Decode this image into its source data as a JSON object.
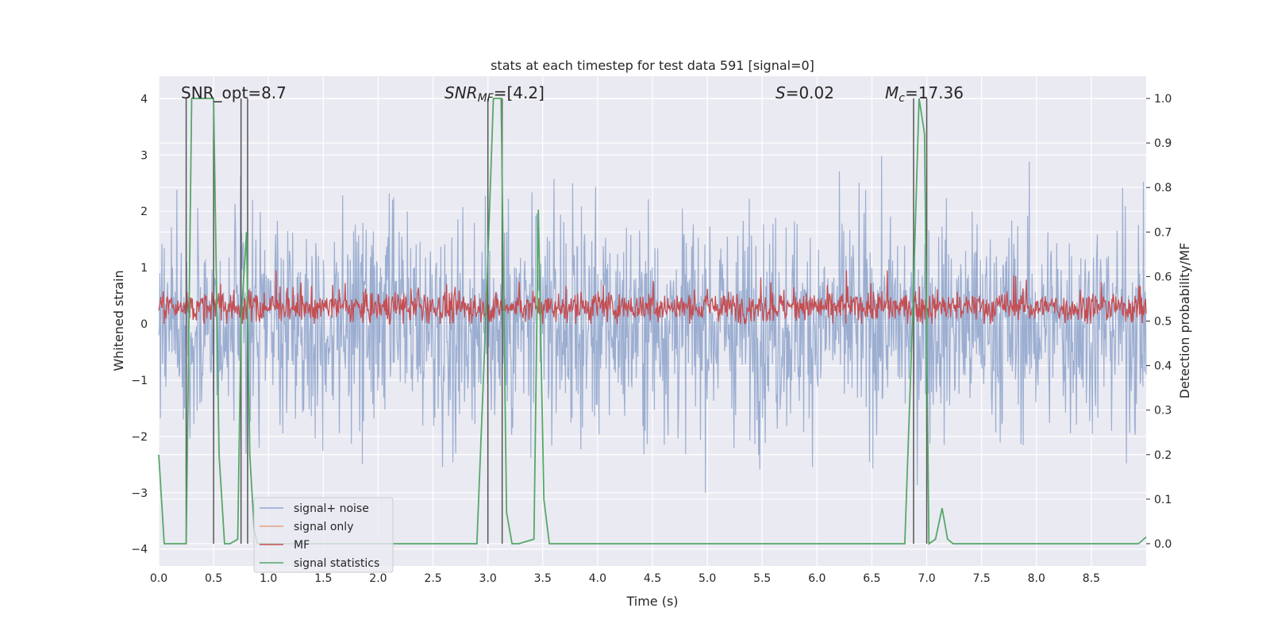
{
  "chart_data": {
    "type": "line",
    "title": "stats at each timestep for test data 591 [signal=0]",
    "xlabel": "Time (s)",
    "ylabel": "Whitened strain",
    "y2label": "Detection probability/MF",
    "xlim": [
      0.0,
      9.0
    ],
    "ylim": [
      -4.3,
      4.4
    ],
    "y2lim": [
      -0.05,
      1.05
    ],
    "xticks": [
      "0.0",
      "0.5",
      "1.0",
      "1.5",
      "2.0",
      "2.5",
      "3.0",
      "3.5",
      "4.0",
      "4.5",
      "5.0",
      "5.5",
      "6.0",
      "6.5",
      "7.0",
      "7.5",
      "8.0",
      "8.5"
    ],
    "yticks": [
      "4",
      "3",
      "2",
      "1",
      "0",
      "−1",
      "−2",
      "−3",
      "−4"
    ],
    "y2ticks": [
      "1.0",
      "0.9",
      "0.8",
      "0.7",
      "0.6",
      "0.5",
      "0.4",
      "0.3",
      "0.2",
      "0.1",
      "0.0"
    ],
    "annotations": {
      "snr_opt": "SNR_opt=8.7",
      "snr_mf_label": "SNR",
      "snr_mf_sub": "MF",
      "snr_mf_value": "=[4.2]",
      "s_label": "S",
      "s_value": "=0.02",
      "mc_label": "M",
      "mc_sub": "c",
      "mc_value": "=17.36"
    },
    "legend": {
      "position": "lower-left",
      "entries": [
        "signal+ noise",
        "signal only",
        "MF",
        "signal statistics"
      ]
    },
    "series": [
      {
        "name": "signal+ noise",
        "color": "#4c72b0",
        "description": "whitened noise, std ~1, peaks to about ±4"
      },
      {
        "name": "signal only",
        "color": "#dd8452",
        "values": []
      },
      {
        "name": "MF",
        "color": "#c44e52",
        "description": "matched filter output, ~0 to 0.9 on strain axis"
      },
      {
        "name": "signal statistics",
        "color": "#55a868",
        "axis": "y2",
        "x": [
          0.0,
          0.05,
          0.1,
          0.2,
          0.25,
          0.3,
          0.5,
          0.55,
          0.6,
          0.65,
          0.72,
          0.75,
          0.8,
          0.83,
          0.87,
          0.9,
          1.0,
          1.5,
          2.0,
          2.5,
          2.9,
          2.98,
          3.05,
          3.12,
          3.17,
          3.22,
          3.28,
          3.42,
          3.46,
          3.51,
          3.56,
          3.6,
          4.0,
          5.0,
          6.0,
          6.8,
          6.87,
          6.93,
          6.98,
          7.02,
          7.08,
          7.14,
          7.19,
          7.24,
          7.3,
          8.0,
          8.5,
          8.93,
          9.0
        ],
        "values": [
          0.2,
          0.0,
          0.0,
          0.0,
          0.0,
          1.0,
          1.0,
          0.2,
          0.0,
          0.0,
          0.01,
          0.5,
          0.7,
          0.2,
          0.03,
          0.0,
          0.0,
          0.0,
          0.0,
          0.0,
          0.0,
          0.5,
          1.0,
          1.0,
          0.07,
          0.0,
          0.0,
          0.01,
          0.75,
          0.1,
          0.0,
          0.0,
          0.0,
          0.0,
          0.0,
          0.0,
          0.5,
          1.0,
          0.92,
          0.0,
          0.01,
          0.08,
          0.01,
          0.0,
          0.0,
          0.0,
          0.0,
          0.0,
          0.015
        ]
      },
      {
        "name": "detection markers",
        "color": "#555555",
        "axis": "y2",
        "x": [
          0.25,
          0.5,
          0.75,
          0.81,
          3.0,
          3.13,
          6.88,
          7.0
        ],
        "values": [
          1.0,
          1.0,
          1.0,
          1.0,
          1.0,
          1.0,
          1.0,
          1.0
        ]
      }
    ]
  }
}
